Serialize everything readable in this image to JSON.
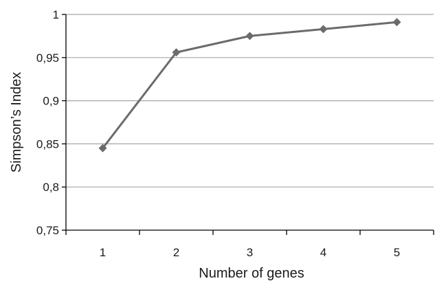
{
  "chart_data": {
    "type": "line",
    "title": "",
    "xlabel": "Number of genes",
    "ylabel": "Simpson’s Index",
    "x": [
      1,
      2,
      3,
      4,
      5
    ],
    "x_tick_labels": [
      "1",
      "2",
      "3",
      "4",
      "5"
    ],
    "ylim": [
      0.75,
      1
    ],
    "y_ticks": [
      0.75,
      0.8,
      0.85,
      0.9,
      0.95,
      1
    ],
    "y_tick_labels": [
      "0,75",
      "0,8",
      "0,85",
      "0,9",
      "0,95",
      "1"
    ],
    "grid": true,
    "legend": "none",
    "series": [
      {
        "values": [
          0.845,
          0.956,
          0.975,
          0.983,
          0.991
        ],
        "marker": "diamond",
        "color": "#6b6b6b"
      }
    ],
    "colors": {
      "line": "#6b6b6b",
      "grid": "#a6a6a6",
      "axis": "#000000"
    }
  }
}
